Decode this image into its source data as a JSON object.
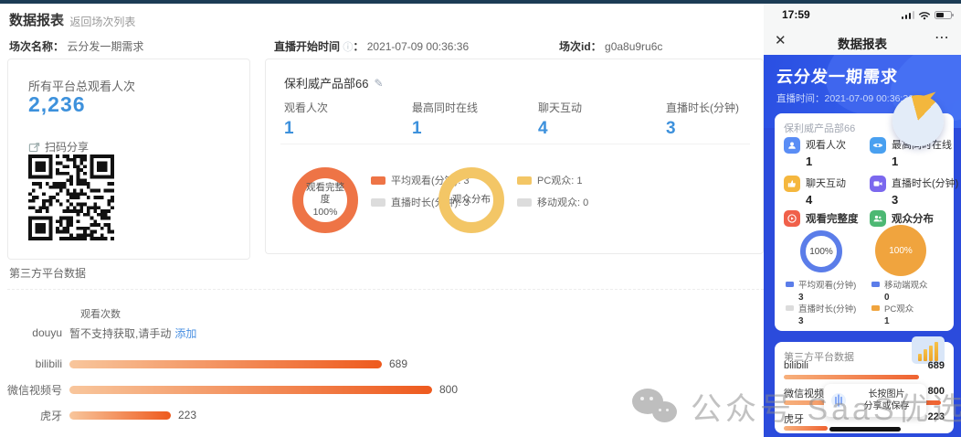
{
  "desktop": {
    "title": "数据报表",
    "back_chevron": "‹",
    "back_link": "返回场次列表",
    "meta": {
      "session_name_label": "场次名称：",
      "session_name": "云分发一期需求",
      "start_time_label": "直播开始时间",
      "info_glyph": "ⓘ",
      "colon": "：",
      "start_time": "2021-07-09 00:36:36",
      "session_id_label": "场次id：",
      "session_id": "g0a8u9ru6c"
    },
    "total_card": {
      "label": "所有平台总观看人次",
      "value": "2,236",
      "share_label": "扫码分享"
    },
    "channel_card": {
      "name": "保利威产品部66",
      "edit_glyph": "✎",
      "stats": [
        {
          "label": "观看人次",
          "value": "1"
        },
        {
          "label": "最高同时在线",
          "value": "1"
        },
        {
          "label": "聊天互动",
          "value": "4"
        },
        {
          "label": "直播时长(分钟)",
          "value": "3"
        }
      ],
      "donut1": {
        "center_line1": "观看完整度",
        "center_line2": "100%"
      },
      "donut1_legend": [
        {
          "label": "平均观看(分钟): 3"
        },
        {
          "label": "直播时长(分钟): 3"
        }
      ],
      "donut2": {
        "center": "观众分布"
      },
      "donut2_legend": [
        {
          "label": "PC观众: 1"
        },
        {
          "label": "移动观众: 0"
        }
      ]
    },
    "third_party": {
      "title": "第三方平台数据",
      "col_header": "观看次数",
      "douyu_label": "douyu",
      "douyu_text": "暂不支持获取,请手动",
      "douyu_link": "添加",
      "bars": [
        {
          "label": "bilibili",
          "value": 689
        },
        {
          "label": "微信视频号",
          "value": 800
        },
        {
          "label": "虎牙",
          "value": 223
        }
      ],
      "max": 800
    }
  },
  "phone": {
    "status": {
      "time": "17:59"
    },
    "nav": {
      "close_glyph": "✕",
      "title": "数据报表",
      "more_glyph": "⋯"
    },
    "header": {
      "title": "云分发一期需求",
      "time_label": "直播时间：",
      "time": "2021-07-09 00:36:36"
    },
    "card1": {
      "name": "保利威产品部66",
      "stats": [
        {
          "label": "观看人次",
          "value": "1"
        },
        {
          "label": "最高同时在线",
          "value": "1"
        },
        {
          "label": "聊天互动",
          "value": "4"
        },
        {
          "label": "直播时长(分钟)",
          "value": "3"
        }
      ],
      "sections": [
        {
          "label": "观看完整度"
        },
        {
          "label": "观众分布"
        }
      ],
      "donut_blue_percent": "100%",
      "circle_orange_percent": "100%",
      "legends": [
        {
          "label": "平均观看(分钟)",
          "value": "3"
        },
        {
          "label": "直播时长(分钟)",
          "value": "3"
        },
        {
          "label": "移动端观众",
          "value": "0"
        },
        {
          "label": "PC观众",
          "value": "1"
        }
      ]
    },
    "card2": {
      "title": "第三方平台数据",
      "bars": [
        {
          "label": "bilibili",
          "value": 689
        },
        {
          "label": "微信视频号",
          "value": 800
        },
        {
          "label": "虎牙",
          "value": 223
        }
      ],
      "max": 800
    },
    "tooltip": {
      "line1": "长按图片",
      "line2": "分享或保存"
    }
  },
  "watermark": {
    "text": "公众号 SaaS优选"
  },
  "colors": {
    "accent_blue": "#3d91dc",
    "donut_orange": "#ee7446",
    "donut_yellow": "#f3c666",
    "phone_bg_blue": "#2b4bdc",
    "bar_gradient_end": "#ee5a1e"
  },
  "chart_data": [
    {
      "type": "pie",
      "title": "观看完整度",
      "center_text": "观看完整度 100%",
      "labels": [
        "平均观看(分钟)",
        "直播时长(分钟)"
      ],
      "values": [
        3,
        3
      ],
      "legend_position": "right"
    },
    {
      "type": "pie",
      "title": "观众分布",
      "center_text": "观众分布",
      "labels": [
        "PC观众",
        "移动观众"
      ],
      "values": [
        1,
        0
      ],
      "legend_position": "right"
    },
    {
      "type": "bar",
      "title": "第三方平台数据 - 观看次数",
      "categories": [
        "douyu",
        "bilibili",
        "微信视频号",
        "虎牙"
      ],
      "values": [
        null,
        689,
        800,
        223
      ],
      "note": "douyu: 暂不支持获取,请手动添加",
      "xlim": [
        0,
        800
      ],
      "orientation": "horizontal"
    }
  ]
}
